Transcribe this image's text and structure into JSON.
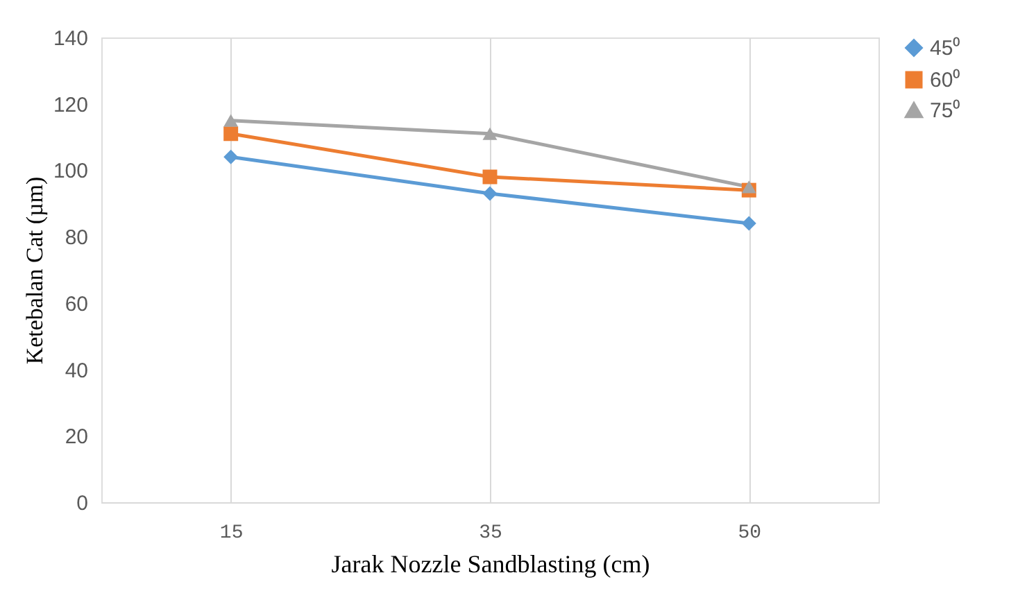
{
  "chart_data": {
    "type": "line",
    "xlabel": "Jarak Nozzle Sandblasting (cm)",
    "ylabel": "Ketebalan Cat (µm)",
    "categories": [
      "15",
      "35",
      "50"
    ],
    "series": [
      {
        "name": "45⁰",
        "color": "#5b9bd5",
        "marker": "diamond",
        "values": [
          104,
          93,
          84
        ]
      },
      {
        "name": "60⁰",
        "color": "#ed7d31",
        "marker": "square",
        "values": [
          111,
          98,
          94
        ]
      },
      {
        "name": "75⁰",
        "color": "#a5a5a5",
        "marker": "triangle",
        "values": [
          115,
          111,
          95
        ]
      }
    ],
    "ylim": [
      0,
      140
    ],
    "yticks": [
      0,
      20,
      40,
      60,
      80,
      100,
      120,
      140
    ],
    "grid": "x",
    "legend": "right",
    "line_style": "solid"
  }
}
